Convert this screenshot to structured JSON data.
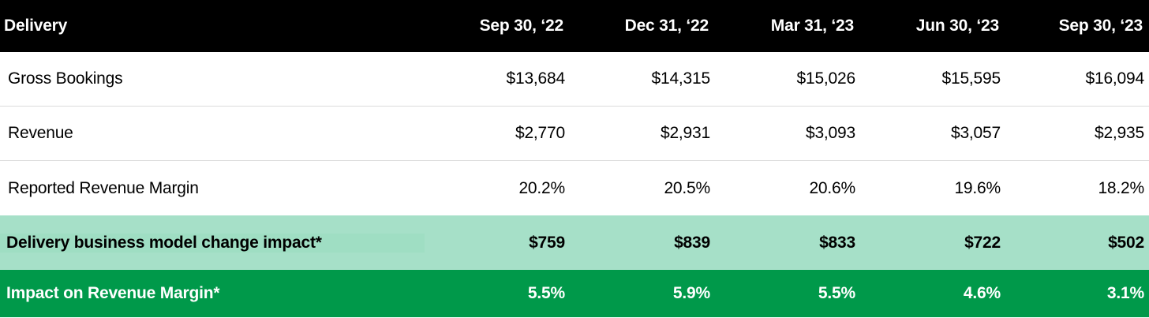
{
  "header": {
    "label": "Delivery",
    "columns": [
      "Sep 30, ‘22",
      "Dec 31, ‘22",
      "Mar 31, ‘23",
      "Jun 30, ‘23",
      "Sep 30, ‘23"
    ]
  },
  "rows": [
    {
      "label": "Gross Bookings",
      "values": [
        "$13,684",
        "$14,315",
        "$15,026",
        "$15,595",
        "$16,094"
      ]
    },
    {
      "label": "Revenue",
      "values": [
        "$2,770",
        "$2,931",
        "$3,093",
        "$3,057",
        "$2,935"
      ]
    },
    {
      "label": "Reported Revenue Margin",
      "values": [
        "20.2%",
        "20.5%",
        "20.6%",
        "19.6%",
        "18.2%"
      ]
    },
    {
      "label": "Delivery business model change impact*",
      "values": [
        "$759",
        "$839",
        "$833",
        "$722",
        "$502"
      ]
    },
    {
      "label": "Impact on Revenue Margin*",
      "values": [
        "5.5%",
        "5.9%",
        "5.5%",
        "4.6%",
        "3.1%"
      ]
    }
  ],
  "colors": {
    "header_bg": "#000000",
    "highlight_light_green": "#a6e0c8",
    "highlight_dark_green": "#00994a"
  }
}
